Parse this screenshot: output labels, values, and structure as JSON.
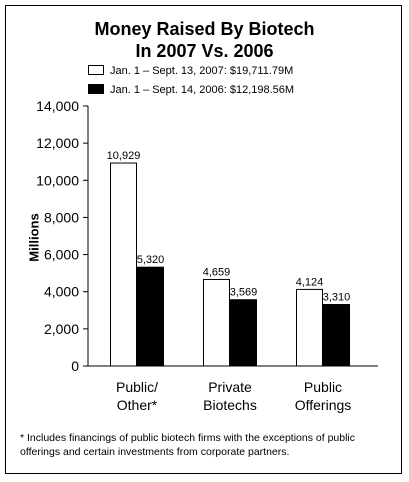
{
  "chart_data": {
    "type": "bar",
    "title_line1": "Money Raised By Biotech",
    "title_line2": "In 2007 Vs. 2006",
    "ylabel": "Millions",
    "xlabel": "",
    "ylim": [
      0,
      14000
    ],
    "yticks": [
      0,
      2000,
      4000,
      6000,
      8000,
      10000,
      12000,
      14000
    ],
    "ytick_labels": [
      "0",
      "2,000",
      "4,000",
      "6,000",
      "8,000",
      "10,000",
      "12,000",
      "14,000"
    ],
    "categories": [
      [
        "Public/",
        "Other*"
      ],
      [
        "Private",
        "Biotechs"
      ],
      [
        "Public",
        "Offerings"
      ]
    ],
    "series": [
      {
        "name": "Jan. 1 –  Sept. 13, 2007: $19,711.79M",
        "values": [
          10929,
          4659,
          4124
        ],
        "labels": [
          "10,929",
          "4,659",
          "4,124"
        ],
        "color": "#ffffff"
      },
      {
        "name": "Jan. 1 –  Sept. 14, 2006: $12,198.56M",
        "values": [
          5320,
          3569,
          3310
        ],
        "labels": [
          "5,320",
          "3,569",
          "3,310"
        ],
        "color": "#000000"
      }
    ],
    "grid": false,
    "legend_position": "top"
  },
  "footnote": "* Includes financings of public biotech firms with the exceptions of public offerings and certain investments from corporate partners."
}
